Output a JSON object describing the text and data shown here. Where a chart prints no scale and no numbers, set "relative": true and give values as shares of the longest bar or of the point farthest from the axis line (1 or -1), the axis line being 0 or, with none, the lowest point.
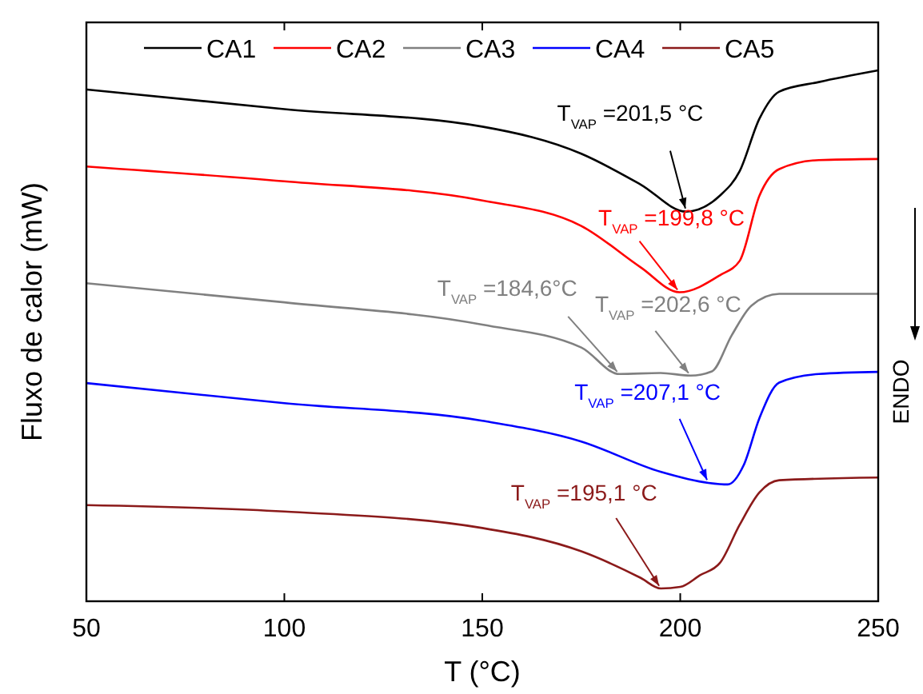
{
  "chart_data": {
    "type": "line",
    "relative": true,
    "xlabel": "T (°C)",
    "ylabel": "Fluxo de calor (mW)",
    "xlim": [
      50,
      250
    ],
    "xticks": [
      50,
      100,
      150,
      200,
      250
    ],
    "grid": false,
    "legend": "top",
    "line_style": "solid",
    "tick_labels": "x",
    "series": [
      {
        "name": "CA1",
        "color": "#000000",
        "x": [
          50,
          100,
          150,
          175,
          190,
          201.5,
          210,
          215,
          220,
          225,
          235,
          250
        ],
        "values": [
          0.964,
          0.927,
          0.894,
          0.843,
          0.785,
          0.734,
          0.764,
          0.81,
          0.909,
          0.96,
          0.978,
          1
        ]
      },
      {
        "name": "CA2",
        "color": "#ff0000",
        "x": [
          50,
          100,
          150,
          175,
          190,
          199.8,
          210,
          215,
          220,
          225,
          235,
          250
        ],
        "values": [
          0.819,
          0.791,
          0.755,
          0.707,
          0.629,
          0.582,
          0.614,
          0.641,
          0.764,
          0.814,
          0.831,
          0.833
        ]
      },
      {
        "name": "CA3",
        "color": "#808080",
        "x": [
          50,
          100,
          150,
          175,
          184.6,
          195,
          202.6,
          208,
          213,
          218,
          225,
          250
        ],
        "values": [
          0.599,
          0.563,
          0.521,
          0.478,
          0.428,
          0.43,
          0.425,
          0.433,
          0.501,
          0.557,
          0.579,
          0.579
        ]
      },
      {
        "name": "CA4",
        "color": "#0000ff",
        "x": [
          50,
          100,
          150,
          175,
          195,
          207.1,
          212,
          216,
          220,
          225,
          235,
          250
        ],
        "values": [
          0.411,
          0.373,
          0.34,
          0.301,
          0.244,
          0.223,
          0.22,
          0.256,
          0.345,
          0.412,
          0.428,
          0.432
        ]
      },
      {
        "name": "CA5",
        "color": "#8b1a1a",
        "x": [
          50,
          100,
          150,
          175,
          190,
          195.1,
          200,
          205,
          210,
          215,
          220,
          225,
          250
        ],
        "values": [
          0.181,
          0.169,
          0.138,
          0.094,
          0.044,
          0.024,
          0.027,
          0.049,
          0.072,
          0.144,
          0.205,
          0.228,
          0.233
        ]
      }
    ],
    "annotations": [
      {
        "text": "T$_{VAP}$ =201,5 °C",
        "x": 201.5,
        "y": 0.734
      },
      {
        "text": "T$_{VAP}$ =199,8 °C",
        "x": 199.8,
        "y": 0.582
      },
      {
        "text": "T$_{VAP}$ =184,6°C",
        "x": 184.6,
        "y": 0.428
      },
      {
        "text": "T$_{VAP}$ =202,6 °C",
        "x": 202.6,
        "y": 0.425
      },
      {
        "text": "T$_{VAP}$ =207,1 °C",
        "x": 207.1,
        "y": 0.223
      },
      {
        "text": "T$_{VAP}$ =195,1 °C",
        "x": 195.1,
        "y": 0.024
      },
      "ENDO"
    ]
  }
}
